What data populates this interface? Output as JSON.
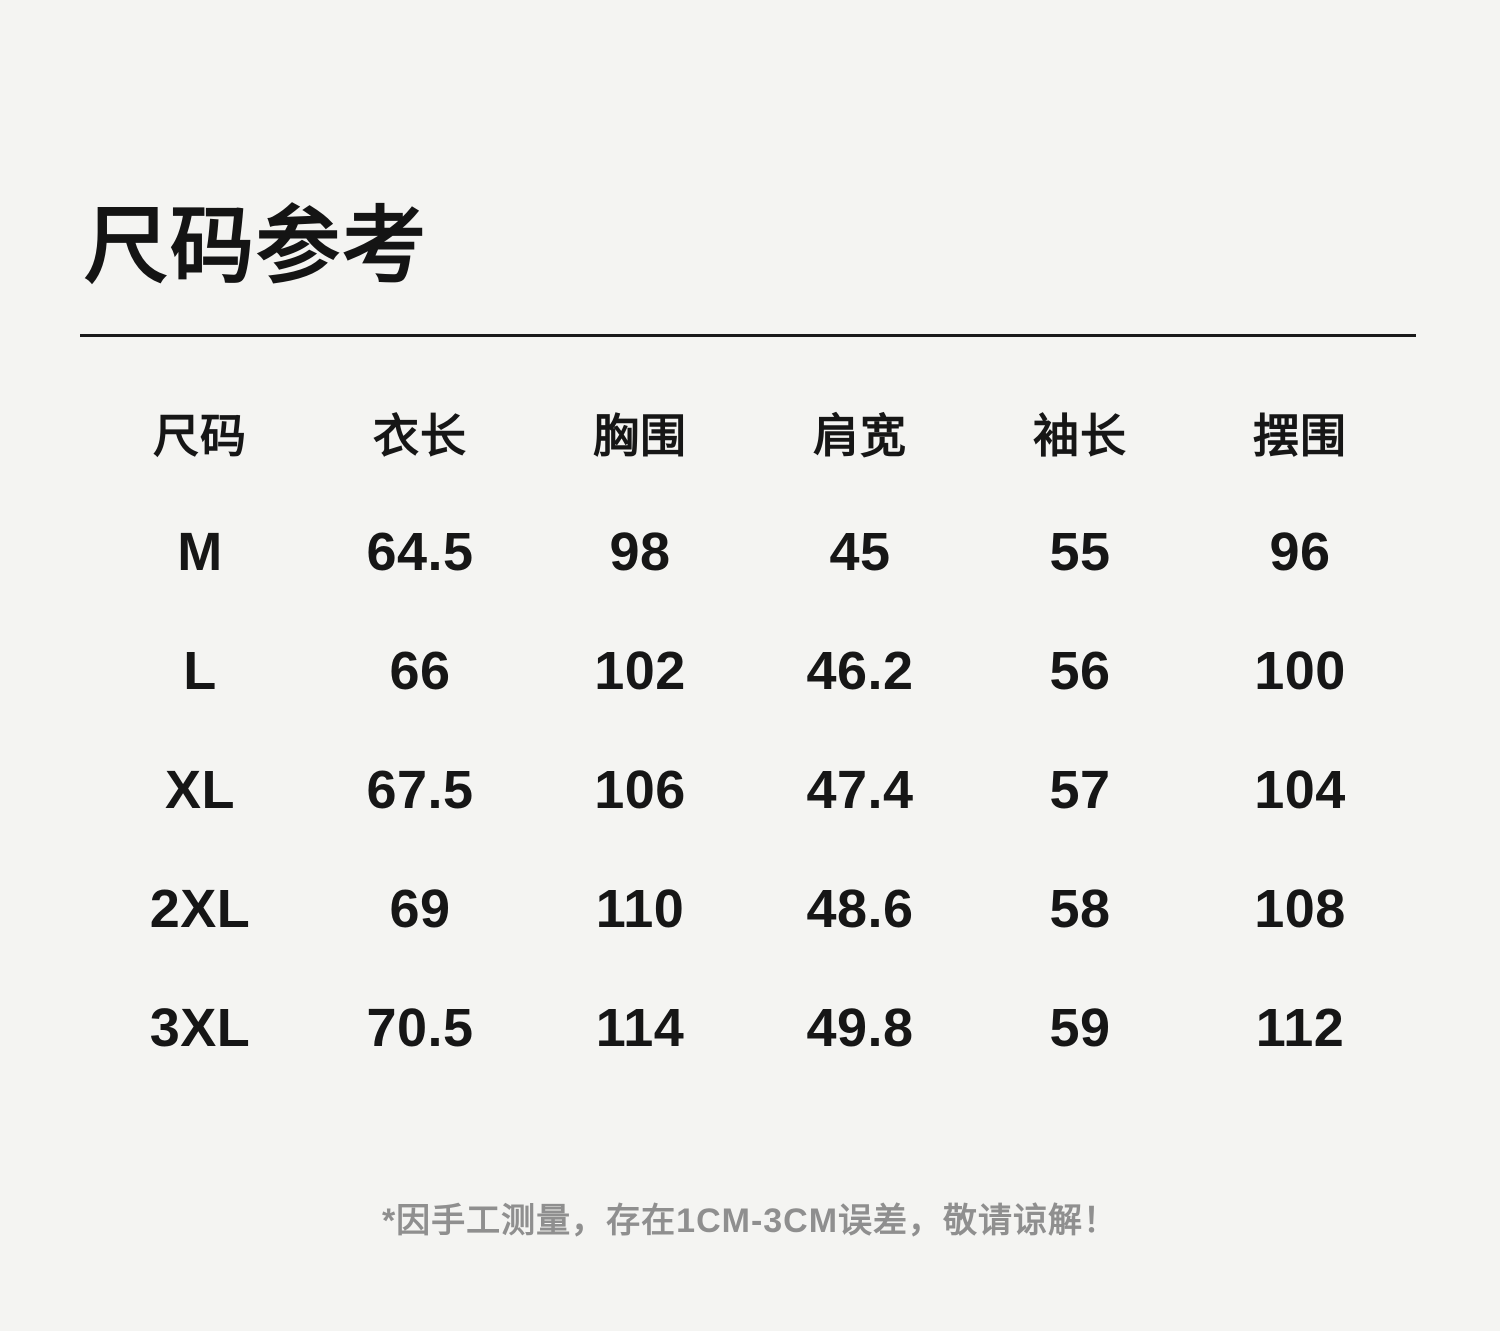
{
  "page": {
    "title": "尺码参考",
    "note": "*因手工测量，存在1CM-3CM误差，敬请谅解！",
    "background_color": "#f4f4f2",
    "text_color": "#161616",
    "note_color": "#8f8f8f",
    "rule_color": "#1a1a1a"
  },
  "size_table": {
    "columns": [
      "尺码",
      "衣长",
      "胸围",
      "肩宽",
      "袖长",
      "摆围"
    ],
    "rows": [
      {
        "size": "M",
        "values": [
          "64.5",
          "98",
          "45",
          "55",
          "96"
        ]
      },
      {
        "size": "L",
        "values": [
          "66",
          "102",
          "46.2",
          "56",
          "100"
        ]
      },
      {
        "size": "XL",
        "values": [
          "67.5",
          "106",
          "47.4",
          "57",
          "104"
        ]
      },
      {
        "size": "2XL",
        "values": [
          "69",
          "110",
          "48.6",
          "58",
          "108"
        ]
      },
      {
        "size": "3XL",
        "values": [
          "70.5",
          "114",
          "49.8",
          "59",
          "112"
        ]
      }
    ]
  }
}
